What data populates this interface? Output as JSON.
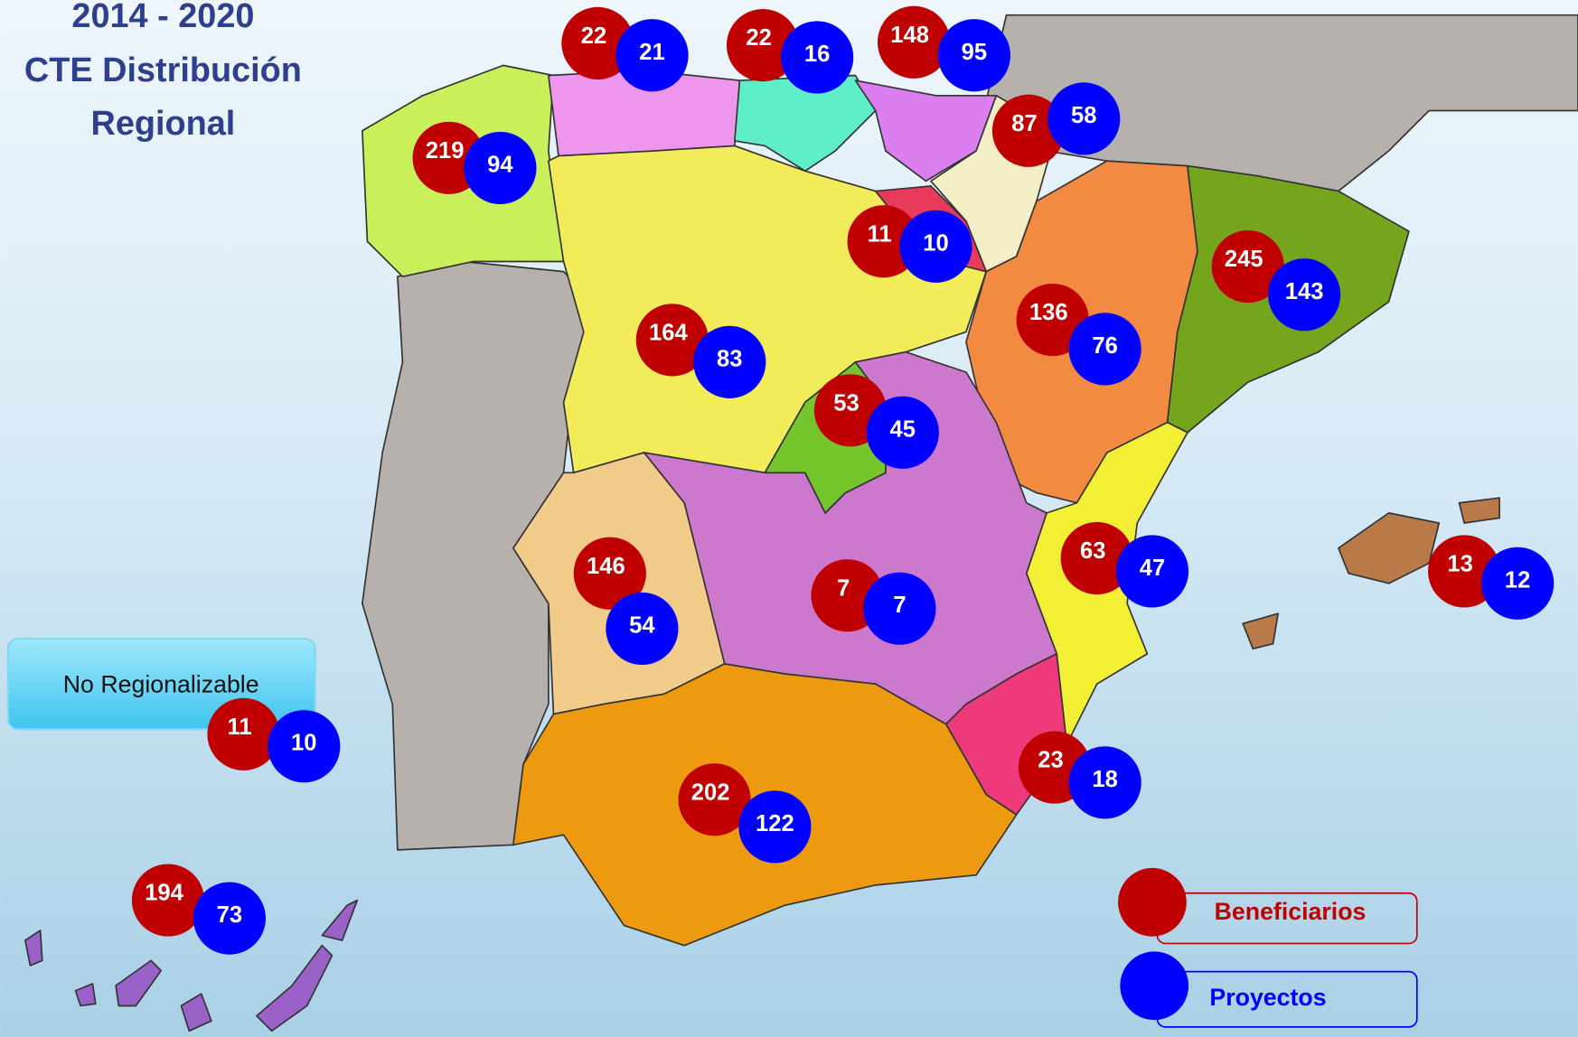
{
  "title": [
    "2014 - 2020",
    "CTE Distribución",
    "Regional"
  ],
  "no_regionalizable": "No Regionalizable",
  "legend": {
    "beneficiarios": "Beneficiarios",
    "proyectos": "Proyectos"
  },
  "regions": [
    {
      "beneficiarios": 22,
      "proyectos": 21
    },
    {
      "beneficiarios": 22,
      "proyectos": 16
    },
    {
      "beneficiarios": 148,
      "proyectos": 95
    },
    {
      "beneficiarios": 87,
      "proyectos": 58
    },
    {
      "beneficiarios": 219,
      "proyectos": 94
    },
    {
      "beneficiarios": 11,
      "proyectos": 10
    },
    {
      "beneficiarios": 245,
      "proyectos": 143
    },
    {
      "beneficiarios": 136,
      "proyectos": 76
    },
    {
      "beneficiarios": 164,
      "proyectos": 83
    },
    {
      "beneficiarios": 53,
      "proyectos": 45
    },
    {
      "beneficiarios": 146,
      "proyectos": 54
    },
    {
      "beneficiarios": 7,
      "proyectos": 7
    },
    {
      "beneficiarios": 63,
      "proyectos": 47
    },
    {
      "beneficiarios": 13,
      "proyectos": 12
    },
    {
      "beneficiarios": 23,
      "proyectos": 18
    },
    {
      "beneficiarios": 202,
      "proyectos": 122
    },
    {
      "beneficiarios": 194,
      "proyectos": 73
    },
    {
      "beneficiarios": 11,
      "proyectos": 10
    }
  ]
}
